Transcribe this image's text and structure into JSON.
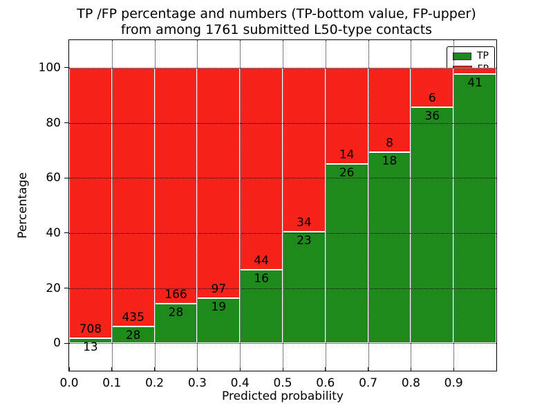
{
  "title": {
    "line1": "TP /FP percentage and numbers (TP-bottom value, FP-upper)",
    "line2": "from among 1761 submitted L50-type contacts"
  },
  "colors": {
    "tp_green": "#1f8a1c",
    "fp_red": "#f5231a",
    "axis": "#000000",
    "background": "#ffffff"
  },
  "legend": {
    "entries": [
      {
        "label": "TP",
        "color_key": "tp_green"
      },
      {
        "label": "FP",
        "color_key": "fp_red"
      }
    ]
  },
  "chart_data": {
    "type": "bar",
    "stacked": true,
    "normalized": "percent-of-bin-total",
    "title": "TP /FP percentage and numbers (TP-bottom value, FP-upper) from among 1761 submitted L50-type contacts",
    "xlabel": "Predicted probability",
    "ylabel": "Percentage",
    "total_contacts": 1761,
    "xlim": [
      0.0,
      1.0
    ],
    "ylim": [
      -10,
      110
    ],
    "x_ticks": [
      "0.0",
      "0.1",
      "0.2",
      "0.3",
      "0.4",
      "0.5",
      "0.6",
      "0.7",
      "0.8",
      "0.9"
    ],
    "y_ticks": [
      "0",
      "20",
      "40",
      "60",
      "80",
      "100"
    ],
    "grid": "dotted",
    "legend_position": "upper right",
    "categories": [
      "0.0-0.1",
      "0.1-0.2",
      "0.2-0.3",
      "0.3-0.4",
      "0.4-0.5",
      "0.5-0.6",
      "0.6-0.7",
      "0.7-0.8",
      "0.8-0.9",
      "0.9-1.0"
    ],
    "series": [
      {
        "name": "TP",
        "counts": [
          13,
          28,
          28,
          19,
          16,
          23,
          26,
          18,
          36,
          41
        ]
      },
      {
        "name": "FP",
        "counts": [
          708,
          435,
          166,
          97,
          44,
          34,
          14,
          8,
          6,
          1
        ]
      }
    ],
    "tp_percent": [
      1.8,
      6.0,
      14.4,
      16.4,
      26.7,
      40.4,
      65.0,
      69.2,
      85.7,
      97.6
    ],
    "bar_count_labels": {
      "tp": [
        "13",
        "28",
        "28",
        "19",
        "16",
        "23",
        "26",
        "18",
        "36",
        "41"
      ],
      "fp": [
        "708",
        "435",
        "166",
        "97",
        "44",
        "34",
        "14",
        "8",
        "6",
        ""
      ]
    }
  }
}
